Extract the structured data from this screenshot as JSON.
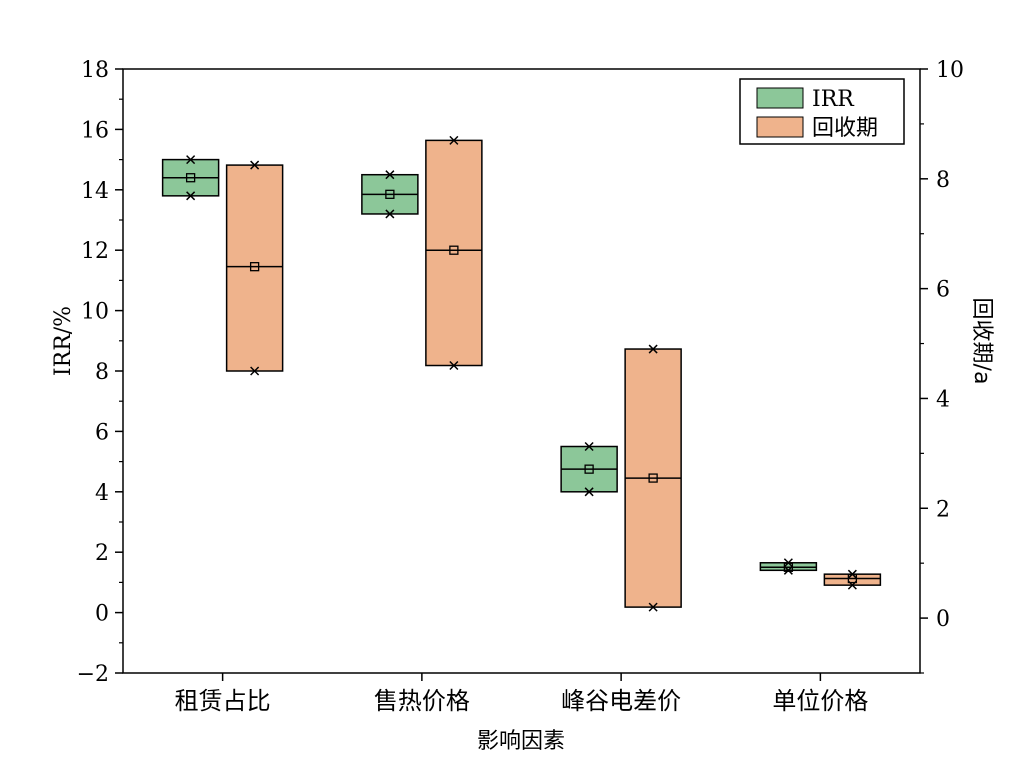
{
  "chart_data": {
    "type": "box",
    "categories": [
      "租赁占比",
      "售热价格",
      "峰谷电差价",
      "单位价格"
    ],
    "xlabel": "影响因素",
    "ylabel_left": "IRR/%",
    "ylabel_right": "回收期/a",
    "ylim_left": [
      -2,
      18
    ],
    "ylim_right": [
      -1,
      10
    ],
    "yticks_left": [
      "−2",
      "0",
      "2",
      "4",
      "6",
      "8",
      "10",
      "12",
      "14",
      "16",
      "18"
    ],
    "yticks_right": [
      "0",
      "2",
      "4",
      "6",
      "8",
      "10"
    ],
    "legend_position": "top-right",
    "grid": false,
    "series": [
      {
        "name": "IRR",
        "axis": "left",
        "color": "#8cc799",
        "boxes": [
          {
            "min": 13.8,
            "q1": 13.8,
            "median": 14.4,
            "mean": 14.4,
            "q3": 15.0,
            "max": 15.0
          },
          {
            "min": 13.2,
            "q1": 13.2,
            "median": 13.85,
            "mean": 13.85,
            "q3": 14.5,
            "max": 14.5
          },
          {
            "min": 4.0,
            "q1": 4.0,
            "median": 4.75,
            "mean": 4.75,
            "q3": 5.5,
            "max": 5.5
          },
          {
            "min": 1.4,
            "q1": 1.4,
            "median": 1.5,
            "mean": 1.5,
            "q3": 1.65,
            "max": 1.65
          }
        ]
      },
      {
        "name": "回收期",
        "axis": "right",
        "color": "#efb38c",
        "boxes": [
          {
            "min": 4.5,
            "q1": 4.5,
            "median": 6.4,
            "mean": 6.4,
            "q3": 8.25,
            "max": 8.25
          },
          {
            "min": 4.6,
            "q1": 4.6,
            "median": 6.7,
            "mean": 6.7,
            "q3": 8.7,
            "max": 8.7
          },
          {
            "min": 0.2,
            "q1": 0.2,
            "median": 2.55,
            "mean": 2.55,
            "q3": 4.9,
            "max": 4.9
          },
          {
            "min": 0.6,
            "q1": 0.6,
            "median": 0.72,
            "mean": 0.72,
            "q3": 0.8,
            "max": 0.8
          }
        ]
      }
    ]
  }
}
